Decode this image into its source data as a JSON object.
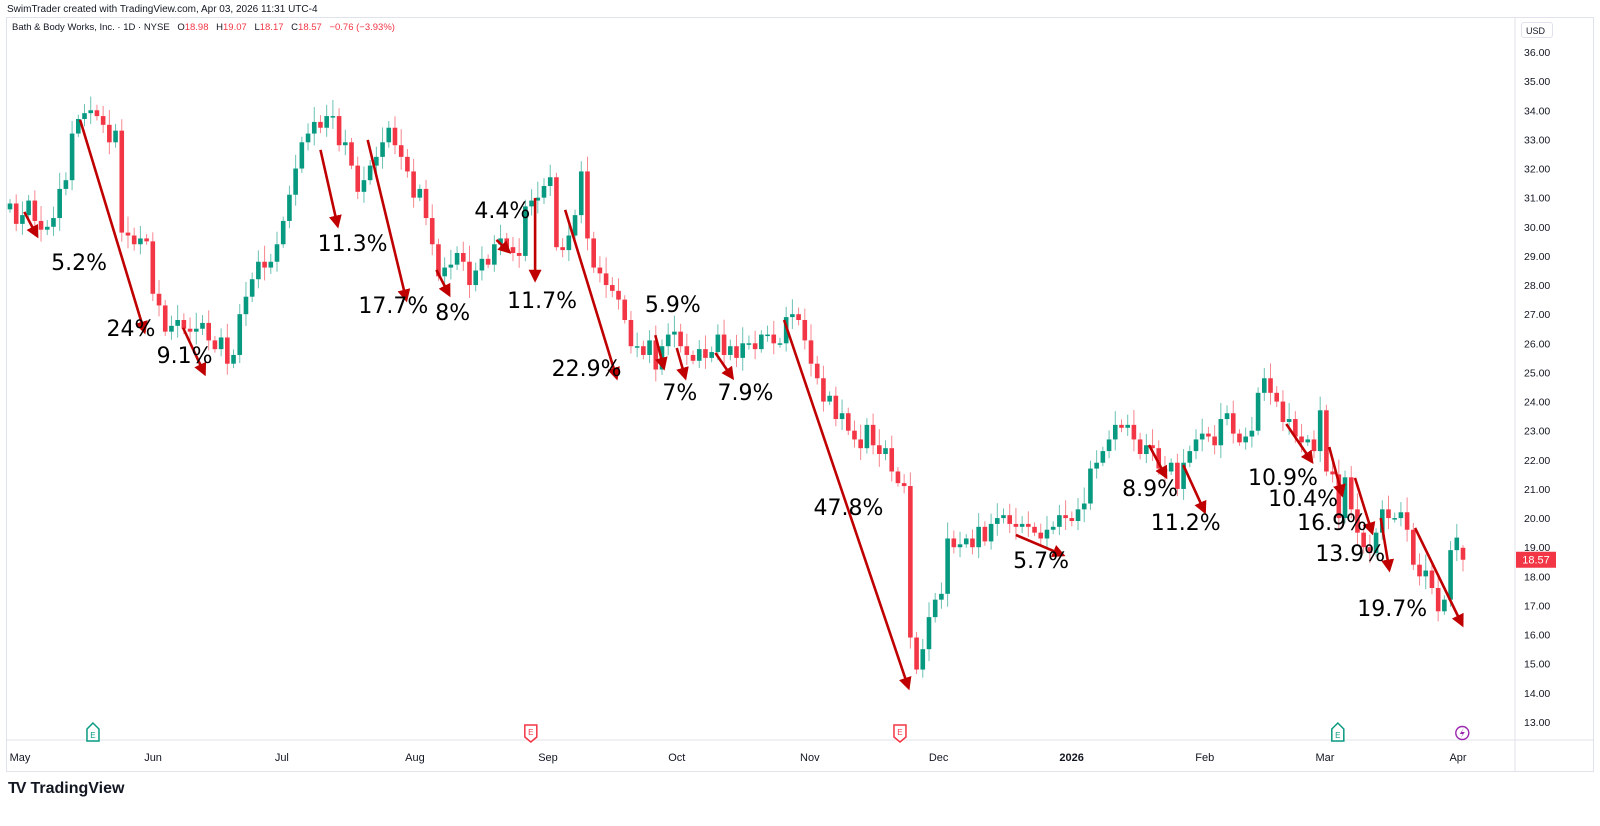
{
  "credit": "SwimTrader created with TradingView.com, Apr 03, 2026 11:31 UTC-4",
  "legend": {
    "symbol": "Bath & Body Works, Inc. · 1D · NYSE",
    "open_label": "O",
    "open": "18.98",
    "high_label": "H",
    "high": "19.07",
    "low_label": "L",
    "low": "18.17",
    "close_label": "C",
    "close": "18.57",
    "change": "−0.76 (−3.93%)"
  },
  "currency": "USD",
  "logo_text": "TradingView",
  "colors": {
    "up": "#089981",
    "down": "#f23645",
    "arrow": "#c00000",
    "lightning": "#9c27b0"
  },
  "chart_data": {
    "type": "candlestick",
    "title": "",
    "ylim": [
      13,
      36
    ],
    "yticks": [
      13,
      14,
      15,
      16,
      17,
      18,
      19,
      20,
      21,
      22,
      23,
      24,
      25,
      26,
      27,
      28,
      29,
      30,
      31,
      32,
      33,
      34,
      35,
      36
    ],
    "grid": false,
    "last_price": "18.57",
    "xticks": [
      {
        "label": "May",
        "date": "2025-05-01"
      },
      {
        "label": "Jun",
        "date": "2025-06-01"
      },
      {
        "label": "Jul",
        "date": "2025-07-01"
      },
      {
        "label": "Aug",
        "date": "2025-08-01"
      },
      {
        "label": "Sep",
        "date": "2025-09-01"
      },
      {
        "label": "Oct",
        "date": "2025-10-01"
      },
      {
        "label": "Nov",
        "date": "2025-11-01"
      },
      {
        "label": "Dec",
        "date": "2025-12-01"
      },
      {
        "label": "2026",
        "date": "2026-01-01",
        "bold": true
      },
      {
        "label": "Feb",
        "date": "2026-02-01"
      },
      {
        "label": "Mar",
        "date": "2026-03-01"
      },
      {
        "label": "Apr",
        "date": "2026-04-01"
      }
    ],
    "closes": [
      30.8,
      30.1,
      30.4,
      30.9,
      30.2,
      29.9,
      30.0,
      30.3,
      31.3,
      31.6,
      33.2,
      33.7,
      33.9,
      34.0,
      33.8,
      33.5,
      32.9,
      33.3,
      29.8,
      29.7,
      29.4,
      29.6,
      29.5,
      27.7,
      27.3,
      26.4,
      26.6,
      26.8,
      26.5,
      26.4,
      26.5,
      26.7,
      26.1,
      25.8,
      26.2,
      25.3,
      25.6,
      27.0,
      27.6,
      28.2,
      28.8,
      28.6,
      28.8,
      29.4,
      30.2,
      31.1,
      32.0,
      32.9,
      33.2,
      33.6,
      33.4,
      33.8,
      33.8,
      32.8,
      32.9,
      32.1,
      31.2,
      31.6,
      32.1,
      32.4,
      32.9,
      33.4,
      32.8,
      32.4,
      31.9,
      31.0,
      31.3,
      30.3,
      29.4,
      28.3,
      28.6,
      28.7,
      29.1,
      28.8,
      28.0,
      28.5,
      28.9,
      28.7,
      29.4,
      29.6,
      29.3,
      29.1,
      29.0,
      30.7,
      30.9,
      31.0,
      31.4,
      31.7,
      29.3,
      29.2,
      29.7,
      30.4,
      31.9,
      29.6,
      28.6,
      28.4,
      28.0,
      27.8,
      27.5,
      26.8,
      25.9,
      25.9,
      25.6,
      26.1,
      25.1,
      25.9,
      26.3,
      26.4,
      25.9,
      25.6,
      25.4,
      25.8,
      25.5,
      25.7,
      26.3,
      25.6,
      25.9,
      25.5,
      26.0,
      26.0,
      25.8,
      26.3,
      26.3,
      26.0,
      26.0,
      26.9,
      27.0,
      26.8,
      26.1,
      25.3,
      24.8,
      24.0,
      24.2,
      23.4,
      23.6,
      23.0,
      22.7,
      22.4,
      23.2,
      22.5,
      22.2,
      22.4,
      21.6,
      21.2,
      21.1,
      15.9,
      14.8,
      15.5,
      16.6,
      17.2,
      17.4,
      19.3,
      19.0,
      19.1,
      19.3,
      19.0,
      19.7,
      19.2,
      19.8,
      20.0,
      20.1,
      19.8,
      19.7,
      19.8,
      19.7,
      19.5,
      19.3,
      19.6,
      19.7,
      20.1,
      20.0,
      19.9,
      20.3,
      20.5,
      21.7,
      21.9,
      22.3,
      22.7,
      23.2,
      23.1,
      23.2,
      22.7,
      22.2,
      22.5,
      22.4,
      21.7,
      21.6,
      21.9,
      21.0,
      21.9,
      22.3,
      22.7,
      22.9,
      22.8,
      22.5,
      23.4,
      23.6,
      22.9,
      22.6,
      22.8,
      23.0,
      24.3,
      24.8,
      24.3,
      24.0,
      23.3,
      23.4,
      22.8,
      22.6,
      22.7,
      22.3,
      23.7,
      21.6,
      21.5,
      20.0,
      21.4,
      20.3,
      19.5,
      19.0,
      18.8,
      19.5,
      20.3,
      20.0,
      20.0,
      20.2,
      19.6,
      18.4,
      18.0,
      18.2,
      17.6,
      16.8,
      17.2,
      18.9,
      19.33,
      18.57
    ],
    "last_bar": {
      "open": 18.98,
      "high": 19.07,
      "low": 18.17,
      "close": 18.57
    },
    "annotations": [
      {
        "label": "5.2%",
        "from": [
          "2025-05-02",
          30.51
        ],
        "to": [
          "2025-05-05",
          29.68
        ]
      },
      {
        "label": "24%",
        "from": [
          "2025-05-15",
          33.67
        ],
        "to": [
          "2025-05-30",
          26.39
        ]
      },
      {
        "label": "9.1%",
        "from": [
          "2025-06-08",
          26.53
        ],
        "to": [
          "2025-06-13",
          24.95
        ]
      },
      {
        "label": "11.3%",
        "from": [
          "2025-07-10",
          32.64
        ],
        "to": [
          "2025-07-14",
          30.03
        ]
      },
      {
        "label": "17.7%",
        "from": [
          "2025-07-21",
          32.98
        ],
        "to": [
          "2025-07-30",
          27.49
        ]
      },
      {
        "label": "8%",
        "from": [
          "2025-08-06",
          28.52
        ],
        "to": [
          "2025-08-09",
          27.66
        ]
      },
      {
        "label": "4.4%",
        "from": [
          "2025-08-20",
          29.55
        ],
        "to": [
          "2025-08-23",
          29.13
        ]
      },
      {
        "label": "11.7%",
        "from": [
          "2025-08-29",
          30.99
        ],
        "to": [
          "2025-08-29",
          28.17
        ]
      },
      {
        "label": "22.9%",
        "from": [
          "2025-09-05",
          30.58
        ],
        "to": [
          "2025-09-17",
          24.81
        ]
      },
      {
        "label": "5.9%",
        "from": [
          "2025-09-26",
          26.28
        ],
        "to": [
          "2025-09-28",
          25.15
        ]
      },
      {
        "label": "7%",
        "from": [
          "2025-10-01",
          25.84
        ],
        "to": [
          "2025-10-03",
          24.81
        ]
      },
      {
        "label": "7.9%",
        "from": [
          "2025-10-10",
          25.67
        ],
        "to": [
          "2025-10-14",
          24.81
        ]
      },
      {
        "label": "47.8%",
        "from": [
          "2025-10-26",
          26.8
        ],
        "to": [
          "2025-11-24",
          14.17
        ]
      },
      {
        "label": "5.7%",
        "from": [
          "2025-12-19",
          19.42
        ],
        "to": [
          "2025-12-30",
          18.73
        ]
      },
      {
        "label": "8.9%",
        "from": [
          "2026-01-19",
          22.51
        ],
        "to": [
          "2026-01-23",
          21.41
        ]
      },
      {
        "label": "11.2%",
        "from": [
          "2026-01-27",
          21.82
        ],
        "to": [
          "2026-02-01",
          20.21
        ]
      },
      {
        "label": "10.9%",
        "from": [
          "2026-02-20",
          23.23
        ],
        "to": [
          "2026-02-26",
          21.93
        ]
      },
      {
        "label": "10.4%",
        "from": [
          "2026-03-02",
          22.44
        ],
        "to": [
          "2026-03-05",
          20.79
        ]
      },
      {
        "label": "16.9%",
        "from": [
          "2026-03-08",
          21.38
        ],
        "to": [
          "2026-03-12",
          19.49
        ]
      },
      {
        "label": "13.9%",
        "from": [
          "2026-03-14",
          20.0
        ],
        "to": [
          "2026-03-16",
          18.22
        ]
      },
      {
        "label": "19.7%",
        "from": [
          "2026-03-22",
          19.66
        ],
        "to": [
          "2026-04-02",
          16.33
        ]
      }
    ],
    "events": [
      {
        "type": "earnings",
        "label": "E",
        "date": "2025-05-18",
        "color": "#089981"
      },
      {
        "type": "earnings",
        "label": "E",
        "date": "2025-08-28",
        "color": "#f23645"
      },
      {
        "type": "earnings",
        "label": "E",
        "date": "2025-11-22",
        "color": "#f23645"
      },
      {
        "type": "earnings",
        "label": "E",
        "date": "2026-03-04",
        "color": "#089981"
      },
      {
        "type": "lightning",
        "label": "",
        "date": "2026-04-02",
        "color": "#9c27b0"
      }
    ]
  }
}
